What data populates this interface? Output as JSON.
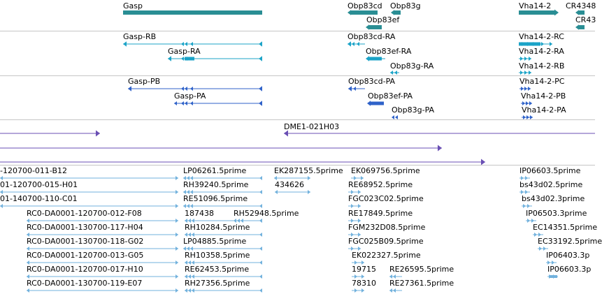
{
  "colors": {
    "gene": "#2a8e94",
    "rna": "#1ba3c7",
    "protein": "#2f62c9",
    "clone": "#6a4fb4",
    "est": "#72b2dd",
    "divider": "#c6c6c6"
  },
  "tracks": {
    "genes": {
      "names": [
        "Gasp",
        "Obp83cd",
        "Obp83g",
        "Obp83ef",
        "Vha14-2",
        "CR4348",
        "CR43"
      ]
    },
    "transcripts": {
      "names": [
        "Gasp-RB",
        "Gasp-RA",
        "Obp83cd-RA",
        "Obp83ef-RA",
        "Obp83g-RA",
        "Vha14-2-RC",
        "Vha14-2-RA",
        "Vha14-2-RB"
      ]
    },
    "proteins": {
      "names": [
        "Gasp-PB",
        "Gasp-PA",
        "Obp83cd-PA",
        "Obp83ef-PA",
        "Obp83g-PA",
        "Vha14-2-PC",
        "Vha14-2-PB",
        "Vha14-2-PA"
      ]
    },
    "clones": {
      "names": [
        "DME1-021H03"
      ]
    },
    "ests": {
      "names": [
        "-120700-011-B12",
        "01-120700-015-H01",
        "01-140700-110-C01",
        "RC0-DA0001-120700-012-F08",
        "RC0-DA0001-130700-117-H04",
        "RC0-DA0001-130700-118-G02",
        "RC0-DA0001-120700-013-G05",
        "RC0-DA0001-120700-017-H10",
        "RC0-DA0001-130700-119-E07",
        "LP06261.5prime",
        "RH39240.5prime",
        "RE51096.5prime",
        "187438",
        "RH52948.5prime",
        "RH10284.5prime",
        "LP04885.5prime",
        "RH10358.5prime",
        "RE62453.5prime",
        "RH27356.5prime",
        "EK287155.5prime",
        "434626",
        "EK069756.5prime",
        "RE68952.5prime",
        "FGC023C02.5prime",
        "RE17849.5prime",
        "FGM232D08.5prime",
        "FGC025B09.5prime",
        "EK022327.5prime",
        "19715",
        "RE26595.5prime",
        "78310",
        "RE27361.5prime",
        "IP06603.5prime",
        "bs43d02.5prime",
        "bs43d02.3prime",
        "IP06503.3prime",
        "EC14351.5prime",
        "EC33192.5prime",
        "IP06403.3p",
        "IP06603.3p"
      ]
    }
  }
}
